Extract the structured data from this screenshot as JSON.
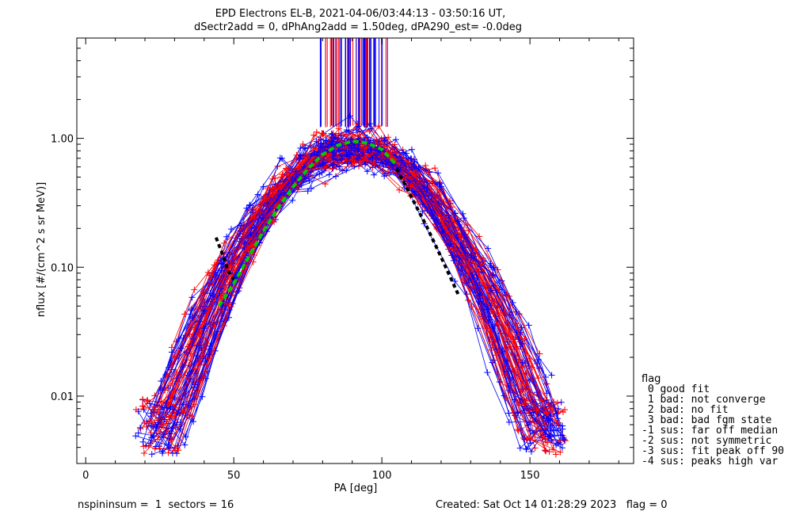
{
  "chart_data": {
    "type": "scatter",
    "title": "EPD Electrons EL-B, 2021-04-06/03:44:13 - 03:50:16 UT,",
    "subtitle": "dSectr2add = 0, dPhAng2add = 1.50deg, dPA290_est=  -0.0deg",
    "xlabel": "PA [deg]",
    "ylabel": "nflux [#/(cm^2 s sr MeV)]",
    "xlim": [
      -3,
      185
    ],
    "ylim": [
      0.003,
      6.0
    ],
    "yscale": "log",
    "xticks": [
      0,
      50,
      100,
      150
    ],
    "xtick_labels": [
      "0",
      "50",
      "100",
      "150"
    ],
    "yticks": [
      0.01,
      0.1,
      1.0
    ],
    "ytick_labels": [
      "0.01",
      "0.10",
      "1.00"
    ],
    "grid": false,
    "legend_position": "right",
    "series": [
      {
        "name": "",
        "color": "#ff0000",
        "marker": "plus",
        "line": true
      },
      {
        "name": "",
        "color": "#0000ff",
        "marker": "plus",
        "line": true
      }
    ],
    "green_fit": {
      "color": "#00cc00",
      "points": [
        [
          45,
          0.05
        ],
        [
          50,
          0.075
        ],
        [
          55,
          0.12
        ],
        [
          60,
          0.19
        ],
        [
          65,
          0.29
        ],
        [
          70,
          0.42
        ],
        [
          75,
          0.58
        ],
        [
          80,
          0.75
        ],
        [
          85,
          0.88
        ],
        [
          90,
          0.95
        ],
        [
          95,
          0.92
        ],
        [
          100,
          0.82
        ],
        [
          105,
          0.62
        ]
      ]
    },
    "black_fit": [
      {
        "color": "#000000",
        "points": [
          [
            44,
            0.17
          ],
          [
            46,
            0.13
          ],
          [
            48,
            0.095
          ],
          [
            50,
            0.08
          ]
        ]
      },
      {
        "color": "#000000",
        "points": [
          [
            105,
            0.58
          ],
          [
            110,
            0.35
          ],
          [
            115,
            0.21
          ],
          [
            120,
            0.12
          ],
          [
            126,
            0.06
          ]
        ]
      }
    ],
    "vertical_lines": {
      "x_range": [
        79,
        102
      ],
      "y_from": 1.2,
      "colors": [
        "#ff0000",
        "#0000ff"
      ]
    }
  },
  "legend": {
    "title": "flag",
    "items": [
      " 0 good fit",
      " 1 bad: not converge",
      " 2 bad: no fit",
      " 3 bad: bad fgm state",
      "-1 sus: far off median",
      "-2 sus: not symmetric",
      "-3 sus: fit peak off 90",
      "-4 sus: peaks high var"
    ]
  },
  "footer": {
    "left": "nspininsum =  1  sectors = 16",
    "right": "Created: Sat Oct 14 01:28:29 2023   flag = 0"
  }
}
